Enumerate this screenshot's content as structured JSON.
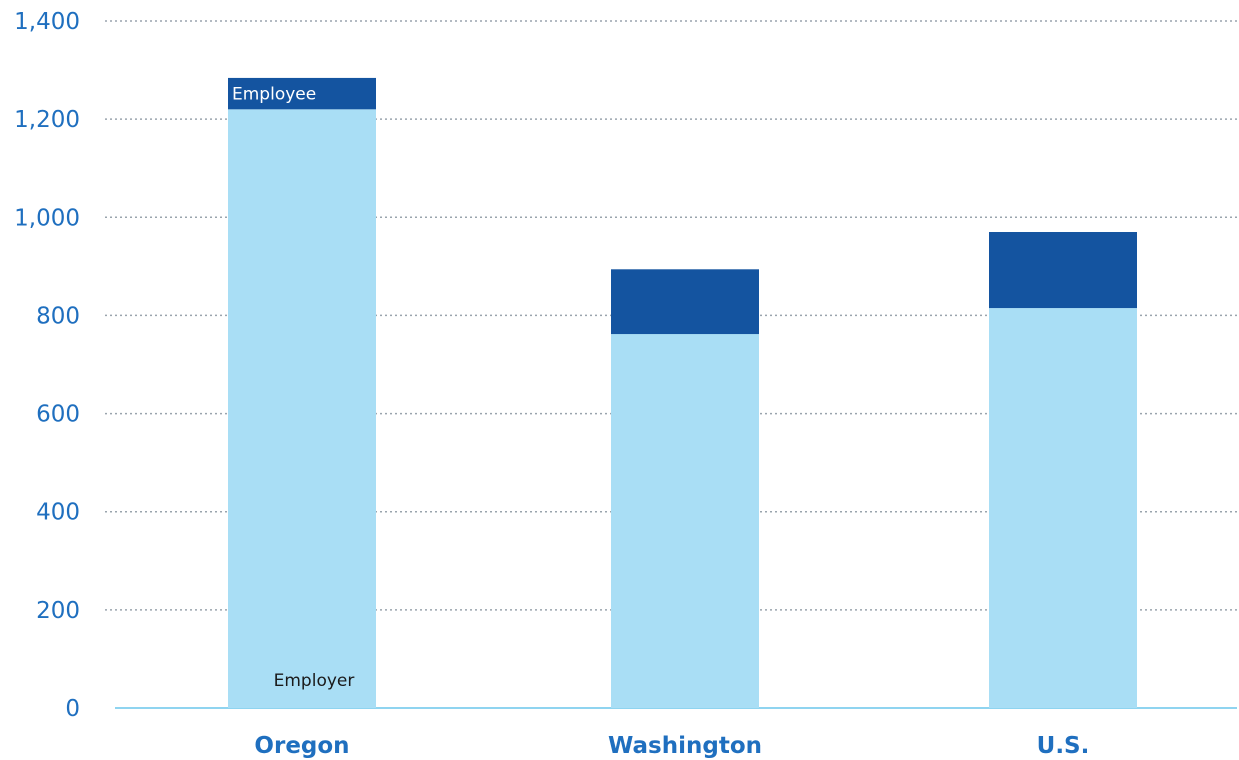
{
  "chart_data": {
    "type": "bar",
    "stacked": true,
    "categories": [
      "Oregon",
      "Washington",
      "U.S."
    ],
    "series": [
      {
        "name": "Employer",
        "values": [
          1220,
          762,
          815
        ],
        "color": "#a9def5"
      },
      {
        "name": "Employee",
        "values": [
          64,
          132,
          155
        ],
        "color": "#1454a0"
      }
    ],
    "ylim": [
      0,
      1400
    ],
    "yticks": [
      "0",
      "200",
      "400",
      "600",
      "800",
      "1,000",
      "1,200",
      "1,400"
    ],
    "ytick_values": [
      0,
      200,
      400,
      600,
      800,
      1000,
      1200,
      1400
    ],
    "grid": true,
    "legend": "inline labels on the Oregon bar",
    "title": "",
    "xlabel": "",
    "ylabel": ""
  },
  "colors": {
    "axis_text": "#1f6fbf",
    "employer": "#a9def5",
    "employee": "#1454a0"
  }
}
